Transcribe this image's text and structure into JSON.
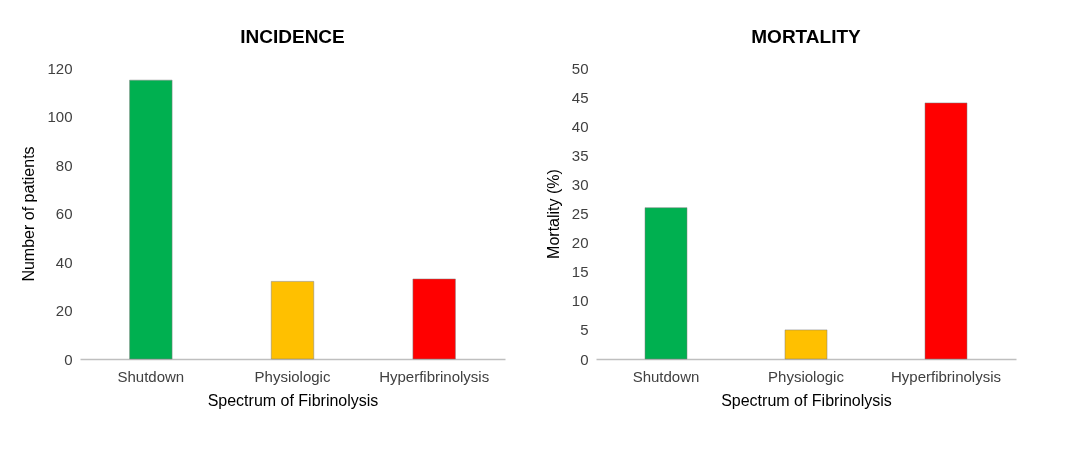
{
  "chart_data": [
    {
      "type": "bar",
      "title": "INCIDENCE",
      "xlabel": "Spectrum of Fibrinolysis",
      "ylabel": "Number of patients",
      "categories": [
        "Shutdown",
        "Physiologic",
        "Hyperfibrinolysis"
      ],
      "values": [
        115,
        32,
        33
      ],
      "colors": [
        "#00b050",
        "#ffc000",
        "#ff0000"
      ],
      "ylim": [
        0,
        120
      ],
      "yticks": [
        0,
        20,
        40,
        60,
        80,
        100,
        120
      ]
    },
    {
      "type": "bar",
      "title": "MORTALITY",
      "xlabel": "Spectrum of Fibrinolysis",
      "ylabel": "Mortality (%)",
      "categories": [
        "Shutdown",
        "Physiologic",
        "Hyperfibrinolysis"
      ],
      "values": [
        26,
        5,
        44
      ],
      "colors": [
        "#00b050",
        "#ffc000",
        "#ff0000"
      ],
      "ylim": [
        0,
        50
      ],
      "yticks": [
        0,
        5,
        10,
        15,
        20,
        25,
        30,
        35,
        40,
        45,
        50
      ]
    }
  ]
}
